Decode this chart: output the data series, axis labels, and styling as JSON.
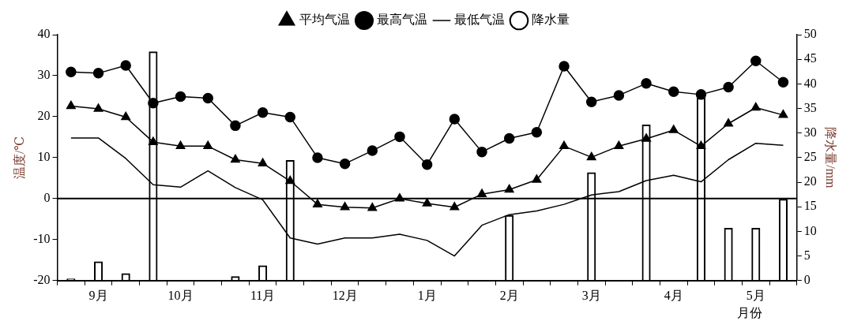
{
  "chart_data": {
    "type": "bar",
    "xlabel": "月份",
    "ylabel": "温度/℃",
    "y2label": "降水量/mm",
    "categories": [
      null,
      "9月",
      null,
      null,
      "10月",
      null,
      null,
      "11月",
      null,
      null,
      "12月",
      null,
      null,
      "1月",
      null,
      null,
      "2月",
      null,
      null,
      "3月",
      null,
      null,
      "4月",
      null,
      null,
      "5月",
      null
    ],
    "series": [
      {
        "name": "降水量",
        "axis": "y2",
        "color": "#000000",
        "values": [
          0.4,
          3.9,
          1.5,
          46.6,
          0,
          0,
          0.9,
          3.1,
          24.5,
          0,
          0,
          0,
          0,
          0,
          0,
          0,
          13.3,
          0,
          0,
          22,
          0,
          31.7,
          0,
          37.9,
          10.7,
          10.7,
          16.6
        ]
      },
      {
        "name": "平均气温",
        "type": "line",
        "color": "#000000",
        "marker": "triangle",
        "values": [
          22.6,
          21.9,
          19.9,
          13.8,
          12.8,
          12.8,
          9.5,
          8.6,
          4.3,
          -1.4,
          -2.1,
          -2.3,
          0,
          -1.2,
          -2.1,
          1.1,
          2.2,
          4.6,
          12.8,
          10.1,
          12.8,
          14.6,
          16.7,
          12.8,
          18.3,
          22.2,
          20.4
        ]
      },
      {
        "name": "最高气温",
        "type": "line",
        "color": "#000000",
        "marker": "circle",
        "values": [
          30.9,
          30.6,
          32.5,
          23.3,
          24.9,
          24.5,
          17.8,
          21,
          19.9,
          10,
          8.5,
          11.7,
          15.1,
          8.3,
          19.4,
          11.4,
          14.7,
          16.2,
          32.3,
          23.6,
          25.2,
          28.1,
          26.1,
          25.4,
          27.2,
          33.6,
          28.4
        ]
      },
      {
        "name": "最低气温",
        "type": "line",
        "color": "#000000",
        "marker": "none",
        "values": [
          14.8,
          14.8,
          9.8,
          3.4,
          2.8,
          6.8,
          2.7,
          -0.3,
          -9.6,
          -11.1,
          -9.6,
          -9.6,
          -8.7,
          -10.2,
          -14,
          -6.5,
          -3.9,
          -3,
          -1.4,
          0.9,
          1.7,
          4.4,
          5.7,
          4.1,
          9.5,
          13.5,
          13
        ]
      }
    ],
    "ylim": [
      -20,
      40
    ],
    "yticks": [
      -20,
      -10,
      0,
      10,
      20,
      30,
      40
    ],
    "y2lim": [
      0,
      50
    ],
    "y2ticks": [
      0,
      5,
      10,
      15,
      20,
      25,
      30,
      35,
      40,
      45,
      50
    ],
    "ref_lines": [
      {
        "axis": "y",
        "value": 0
      }
    ],
    "legend": "top",
    "grid": false
  }
}
